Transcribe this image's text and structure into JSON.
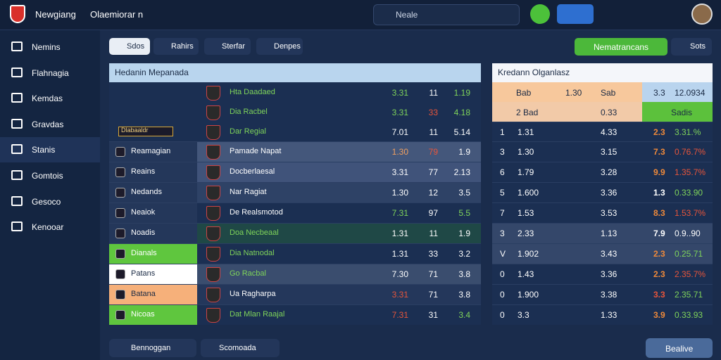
{
  "topbar": {
    "brand": "Newgiang",
    "subtitle": "Olaemiorar n",
    "search": "Neale"
  },
  "sidebar": {
    "items": [
      "Nemins",
      "Flahnagia",
      "Kemdas",
      "Gravdas",
      "Stanis",
      "Gomtois",
      "Gesoco",
      "Kenooar"
    ]
  },
  "tabs": [
    "Sdos",
    "Rahirs",
    "Sterfar",
    "Denpes"
  ],
  "actions": {
    "primary": "Nematrancans",
    "secondary": "Sots"
  },
  "left_panel": {
    "title": "Hedanin Mepanada",
    "badge_text": "Dlabaaldr",
    "rows": [
      {
        "team": "Hta Daadaed",
        "team_color": "#7fd45a",
        "stats": [
          "3.31",
          "11",
          "1.19"
        ],
        "stat_colors": [
          "#7fd45a",
          "#ffffff",
          "#7fd45a"
        ]
      },
      {
        "team": "Dia Racbel",
        "team_color": "#7fd45a",
        "stats": [
          "3.31",
          "33",
          "4.18"
        ],
        "stat_colors": [
          "#7fd45a",
          "#e8553a",
          "#7fd45a"
        ]
      },
      {
        "team": "Dar Regial",
        "team_color": "#7fd45a",
        "stats": [
          "7.01",
          "11",
          "5.14"
        ],
        "stat_colors": [
          "#ffffff",
          "#ffffff",
          "#ffffff"
        ]
      },
      {
        "player": "Reamagian",
        "team": "Pamade Napat",
        "stats": [
          "1.30",
          "79",
          "1.9"
        ],
        "stat_colors": [
          "#f0a060",
          "#e8553a",
          "#ffffff"
        ],
        "bg": "#44577b"
      },
      {
        "player": "Reains",
        "team": "Docberlaesal",
        "stats": [
          "3.31",
          "77",
          "2.13"
        ],
        "stat_colors": [
          "#ffffff",
          "#ffffff",
          "#ffffff"
        ],
        "bg": "#40537a"
      },
      {
        "player": "Nedands",
        "team": "Nar Ragiat",
        "stats": [
          "1.30",
          "12",
          "3.5"
        ],
        "stat_colors": [
          "#ffffff",
          "#ffffff",
          "#ffffff"
        ],
        "bg": "#2e4266"
      },
      {
        "player": "Neaiok",
        "team": "De Realsmotod",
        "stats": [
          "7.31",
          "97",
          "5.5"
        ],
        "stat_colors": [
          "#7fd45a",
          "#ffffff",
          "#7fd45a"
        ],
        "bg": "#1b2f52"
      },
      {
        "player": "Noadis",
        "team": "Doa Necbeaal",
        "team_color": "#7fd45a",
        "stats": [
          "1.31",
          "11",
          "1.9"
        ],
        "stat_colors": [
          "#ffffff",
          "#ffffff",
          "#ffffff"
        ],
        "bg": "#1f4846"
      },
      {
        "player": "Dianals",
        "team": "Dia Natnodal",
        "team_color": "#7fd45a",
        "stats": [
          "1.31",
          "33",
          "3.2"
        ],
        "stat_colors": [
          "#ffffff",
          "#ffffff",
          "#ffffff"
        ],
        "bg": "#1b2f52",
        "name_bg": "#5fc63e"
      },
      {
        "player": "Patans",
        "team": "Go Racbal",
        "team_color": "#7fd45a",
        "stats": [
          "7.30",
          "71",
          "3.8"
        ],
        "stat_colors": [
          "#ffffff",
          "#ffffff",
          "#ffffff"
        ],
        "bg": "#3a4d6e",
        "name_bg": "#ffffff"
      },
      {
        "player": "Batana",
        "team": "Ua Ragharpa",
        "stats": [
          "3.31",
          "71",
          "3.8"
        ],
        "stat_colors": [
          "#e8553a",
          "#ffffff",
          "#ffffff"
        ],
        "bg": "#24375b",
        "name_bg": "#f6b07a"
      },
      {
        "player": "Nicoas",
        "team": "Dat Mlan Raajal",
        "team_color": "#7fd45a",
        "stats": [
          "7.31",
          "31",
          "3.4"
        ],
        "stat_colors": [
          "#e8553a",
          "#ffffff",
          "#7fd45a"
        ],
        "bg": "#1b2f52",
        "name_bg": "#5fc63e"
      }
    ]
  },
  "right_panel": {
    "title": "Kredann Olganlasz",
    "rows": [
      {
        "cells": [
          "Bab",
          "1.30",
          "Sab",
          "3.3",
          "12.0934"
        ]
      },
      {
        "cells": [
          "2 Bad",
          "0.33",
          "Sadis"
        ]
      },
      {
        "cells": [
          "1",
          "1.31",
          "4.33",
          "2.3",
          "3.31.%"
        ],
        "colors": [
          "#f08a3a",
          "#7fd45a"
        ]
      },
      {
        "cells": [
          "3",
          "1.30",
          "3.15",
          "7.3",
          "0.76.7%"
        ],
        "colors": [
          "#f08a3a",
          "#e8553a"
        ]
      },
      {
        "cells": [
          "6",
          "1.79",
          "3.28",
          "9.9",
          "1.35.7%"
        ],
        "colors": [
          "#f08a3a",
          "#e8553a"
        ]
      },
      {
        "cells": [
          "5",
          "1.600",
          "3.36",
          "1.3",
          "0.33.90"
        ],
        "colors": [
          "#ffffff",
          "#7fd45a"
        ]
      },
      {
        "cells": [
          "7",
          "1.53",
          "3.53",
          "8.3",
          "1.53.7%"
        ],
        "colors": [
          "#f08a3a",
          "#e8553a"
        ]
      },
      {
        "cells": [
          "3",
          "2.33",
          "1.13",
          "7.9",
          "0.9..90"
        ],
        "colors": [
          "#ffffff",
          "#ffffff"
        ]
      },
      {
        "cells": [
          "V",
          "1.902",
          "3.43",
          "2.3",
          "0.25.71"
        ],
        "colors": [
          "#f08a3a",
          "#7fd45a"
        ]
      },
      {
        "cells": [
          "0",
          "1.43",
          "3.36",
          "2.3",
          "2.35.7%"
        ],
        "colors": [
          "#f08a3a",
          "#e8553a"
        ]
      },
      {
        "cells": [
          "0",
          "1.900",
          "3.38",
          "3.3",
          "2.35.71"
        ],
        "colors": [
          "#e8553a",
          "#7fd45a"
        ]
      },
      {
        "cells": [
          "0",
          "3.3",
          "1.33",
          "3.9",
          "0.33.93"
        ],
        "colors": [
          "#f08a3a",
          "#7fd45a"
        ]
      }
    ]
  },
  "footer": {
    "filter1": "Bennoggan",
    "filter2": "Scomoada",
    "action": "Bealive"
  }
}
